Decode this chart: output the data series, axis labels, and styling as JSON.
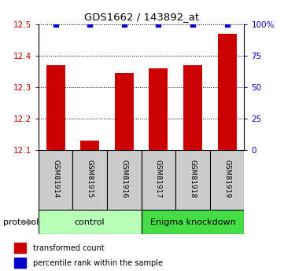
{
  "title": "GDS1662 / 143892_at",
  "samples": [
    "GSM81914",
    "GSM81915",
    "GSM81916",
    "GSM81917",
    "GSM81918",
    "GSM81919"
  ],
  "red_values": [
    12.37,
    12.13,
    12.345,
    12.36,
    12.37,
    12.47
  ],
  "blue_values": [
    100,
    100,
    100,
    100,
    100,
    100
  ],
  "ylim_left": [
    12.1,
    12.5
  ],
  "ylim_right": [
    0,
    100
  ],
  "yticks_left": [
    12.1,
    12.2,
    12.3,
    12.4,
    12.5
  ],
  "yticks_right": [
    0,
    25,
    50,
    75,
    100
  ],
  "groups": [
    {
      "label": "control",
      "span": [
        0,
        3
      ],
      "color": "#b8ffb8"
    },
    {
      "label": "Enigma knockdown",
      "span": [
        3,
        6
      ],
      "color": "#44dd44"
    }
  ],
  "protocol_label": "protocol",
  "legend_items": [
    {
      "label": "transformed count",
      "color": "#CC0000"
    },
    {
      "label": "percentile rank within the sample",
      "color": "#0000CC"
    }
  ],
  "bar_color": "#CC0000",
  "dot_color": "#0000CC",
  "bar_width": 0.55,
  "sample_box_color": "#cccccc",
  "left_tick_color": "#CC0000",
  "right_tick_color": "#0000CC",
  "grid_color": "#000000",
  "right_tick_labels": [
    "0",
    "25",
    "50",
    "75",
    "100%"
  ]
}
